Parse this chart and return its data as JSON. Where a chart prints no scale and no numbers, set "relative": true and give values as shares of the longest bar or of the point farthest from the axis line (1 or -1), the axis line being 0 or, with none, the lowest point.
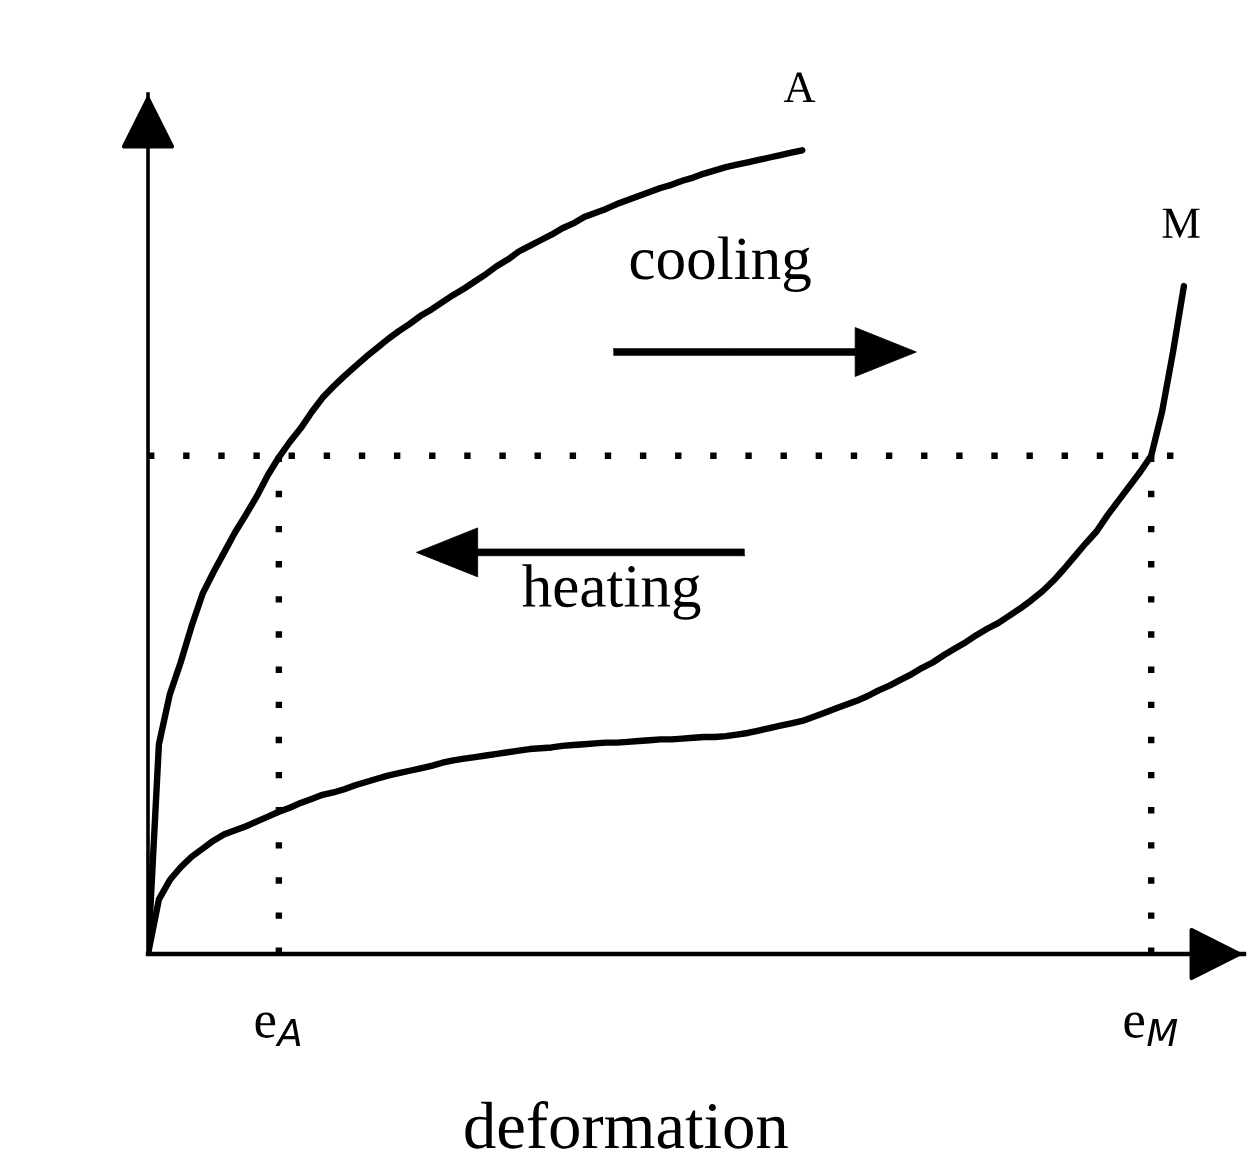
{
  "chart_data": {
    "type": "line",
    "relative": true,
    "xlabel": "deformation",
    "line_style": "solid",
    "categories": [
      null,
      null,
      null,
      null,
      null,
      null,
      null,
      null,
      null,
      null,
      null,
      null,
      "e$_{A}$",
      null,
      null,
      null,
      null,
      null,
      null,
      null,
      null,
      null,
      null,
      null,
      null,
      null,
      null,
      null,
      null,
      null,
      null,
      null,
      null,
      null,
      null,
      null,
      null,
      null,
      null,
      null,
      null,
      null,
      null,
      null,
      null,
      null,
      null,
      null,
      null,
      null,
      null,
      null,
      null,
      null,
      null,
      null,
      null,
      null,
      null,
      null,
      null,
      null,
      null,
      null,
      null,
      null,
      null,
      null,
      null,
      null,
      null,
      null,
      null,
      null,
      null,
      null,
      null,
      null,
      null,
      null,
      null,
      null,
      null,
      null,
      null,
      null,
      null,
      null,
      null,
      null,
      null,
      null,
      "e$_{M}$",
      null,
      null,
      null
    ],
    "series": [
      {
        "name": "A",
        "color": "#000000",
        "values": [
          0,
          0.261,
          0.323,
          0.363,
          0.408,
          0.448,
          0.475,
          0.5,
          0.525,
          0.547,
          0.57,
          0.596,
          0.618,
          0.637,
          0.654,
          0.674,
          0.692,
          0.706,
          0.719,
          0.731,
          0.743,
          0.754,
          0.765,
          0.775,
          0.784,
          0.794,
          0.802,
          0.811,
          0.82,
          0.828,
          0.837,
          0.846,
          0.856,
          0.864,
          0.874,
          0.881,
          0.888,
          0.895,
          0.903,
          0.909,
          0.917,
          0.922,
          0.927,
          0.933,
          0.938,
          0.943,
          0.948,
          0.953,
          0.957,
          0.962,
          0.966,
          0.971,
          0.975,
          0.979,
          0.982,
          0.985,
          0.988,
          0.991,
          0.994,
          0.997,
          1.0,
          null,
          null,
          null,
          null,
          null,
          null,
          null,
          null,
          null,
          null,
          null,
          null,
          null,
          null,
          null,
          null,
          null,
          null,
          null,
          null,
          null,
          null,
          null,
          null,
          null,
          null,
          null,
          null,
          null,
          null,
          null,
          null,
          null,
          null,
          null
        ]
      },
      {
        "name": "M",
        "color": "#000000",
        "values": [
          0,
          0.068,
          0.092,
          0.108,
          0.121,
          0.131,
          0.141,
          0.149,
          0.154,
          0.159,
          0.165,
          0.171,
          0.177,
          0.182,
          0.188,
          0.193,
          0.198,
          0.201,
          0.205,
          0.21,
          0.214,
          0.218,
          0.222,
          0.225,
          0.228,
          0.231,
          0.234,
          0.238,
          0.241,
          0.243,
          0.245,
          0.247,
          0.249,
          0.251,
          0.253,
          0.255,
          0.256,
          0.257,
          0.259,
          0.26,
          0.261,
          0.262,
          0.263,
          0.263,
          0.264,
          0.265,
          0.266,
          0.267,
          0.267,
          0.268,
          0.269,
          0.27,
          0.27,
          0.271,
          0.273,
          0.275,
          0.278,
          0.281,
          0.284,
          0.287,
          0.29,
          0.295,
          0.3,
          0.305,
          0.31,
          0.315,
          0.321,
          0.328,
          0.334,
          0.341,
          0.348,
          0.356,
          0.363,
          0.372,
          0.38,
          0.388,
          0.397,
          0.405,
          0.412,
          0.421,
          0.43,
          0.44,
          0.451,
          0.464,
          0.479,
          0.495,
          0.511,
          0.526,
          0.546,
          0.564,
          0.582,
          0.6,
          0.62,
          0.675,
          0.749,
          0.831
        ]
      }
    ],
    "ref_lines": [
      {
        "axis": "y",
        "value": 0.62,
        "line_style": "dotted",
        "color": "#000000"
      },
      {
        "axis": "x",
        "value": "e$_{A}$",
        "line_style": "dotted",
        "color": "#000000"
      },
      {
        "axis": "x",
        "value": "e$_{M}$",
        "line_style": "dotted",
        "color": "#000000"
      }
    ],
    "annotations": [
      "cooling",
      "heating"
    ]
  }
}
